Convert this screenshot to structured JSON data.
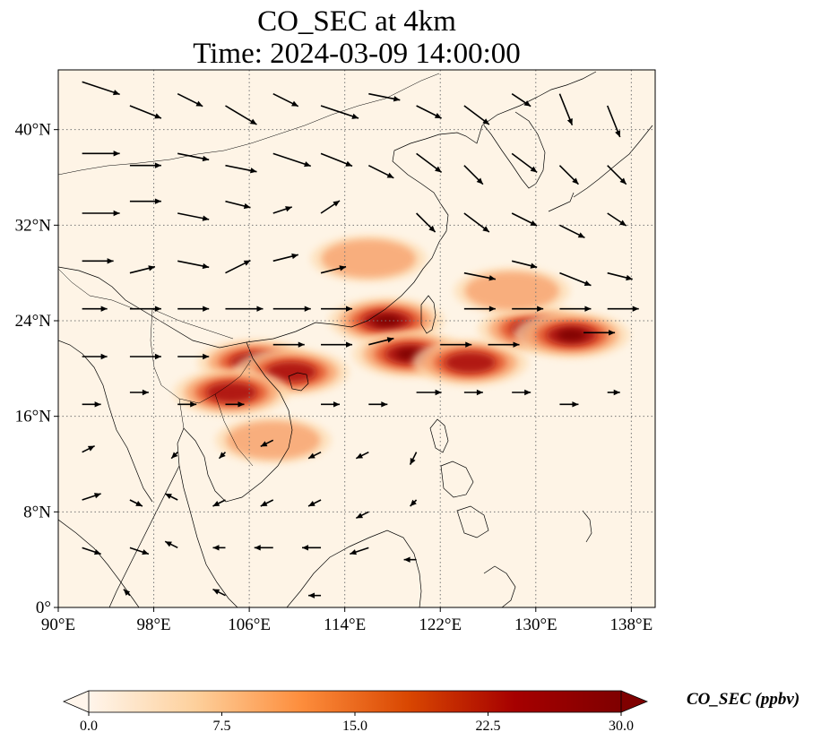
{
  "title": {
    "line1": "CO_SEC at 4km",
    "line2": "Time: 2024-03-09 14:00:00"
  },
  "map": {
    "extent": {
      "lon_min": 90,
      "lon_max": 140,
      "lat_min": 0,
      "lat_max": 45
    },
    "lon_ticks": [
      {
        "value": 90,
        "label": "90°E"
      },
      {
        "value": 98,
        "label": "98°E"
      },
      {
        "value": 106,
        "label": "106°E"
      },
      {
        "value": 114,
        "label": "114°E"
      },
      {
        "value": 122,
        "label": "122°E"
      },
      {
        "value": 130,
        "label": "130°E"
      },
      {
        "value": 138,
        "label": "138°E"
      }
    ],
    "lat_ticks": [
      {
        "value": 0,
        "label": "0°"
      },
      {
        "value": 8,
        "label": "8°N"
      },
      {
        "value": 16,
        "label": "16°N"
      },
      {
        "value": 24,
        "label": "24°N"
      },
      {
        "value": 32,
        "label": "32°N"
      },
      {
        "value": 40,
        "label": "40°N"
      }
    ],
    "gridlines": "dotted",
    "background_color": "#fef4e6",
    "plume_colors": [
      "#fddcb0",
      "#f8a572",
      "#e3572e",
      "#a80f0f",
      "#7a0000"
    ],
    "plumes": [
      {
        "lon": 106.5,
        "lat": 20.5,
        "level": 4
      },
      {
        "lon": 109.5,
        "lat": 19.7,
        "level": 3
      },
      {
        "lon": 104.5,
        "lat": 18.0,
        "level": 3
      },
      {
        "lon": 117.5,
        "lat": 24.0,
        "level": 4
      },
      {
        "lon": 119.5,
        "lat": 21.2,
        "level": 4
      },
      {
        "lon": 124.5,
        "lat": 20.5,
        "level": 3
      },
      {
        "lon": 130.0,
        "lat": 23.3,
        "level": 4
      },
      {
        "lon": 133.0,
        "lat": 22.8,
        "level": 4
      },
      {
        "lon": 116.0,
        "lat": 29.2,
        "level": 1
      },
      {
        "lon": 128.0,
        "lat": 26.5,
        "level": 1
      },
      {
        "lon": 108.0,
        "lat": 14.0,
        "level": 1
      }
    ],
    "wind_vectors": [
      {
        "lon": 92,
        "lat": 44,
        "u": 6,
        "v": -2
      },
      {
        "lon": 96,
        "lat": 42,
        "u": 5,
        "v": -2
      },
      {
        "lon": 100,
        "lat": 43,
        "u": 4,
        "v": -2
      },
      {
        "lon": 104,
        "lat": 42,
        "u": 5,
        "v": -3
      },
      {
        "lon": 108,
        "lat": 43,
        "u": 4,
        "v": -2
      },
      {
        "lon": 112,
        "lat": 42,
        "u": 6,
        "v": -2
      },
      {
        "lon": 116,
        "lat": 43,
        "u": 5,
        "v": -1
      },
      {
        "lon": 120,
        "lat": 42,
        "u": 4,
        "v": -2
      },
      {
        "lon": 124,
        "lat": 42,
        "u": 4,
        "v": -3
      },
      {
        "lon": 128,
        "lat": 43,
        "u": 3,
        "v": -2
      },
      {
        "lon": 132,
        "lat": 43,
        "u": 2,
        "v": -5
      },
      {
        "lon": 136,
        "lat": 42,
        "u": 2,
        "v": -5
      },
      {
        "lon": 92,
        "lat": 38,
        "u": 6,
        "v": 0
      },
      {
        "lon": 96,
        "lat": 37,
        "u": 5,
        "v": 0
      },
      {
        "lon": 100,
        "lat": 38,
        "u": 5,
        "v": -1
      },
      {
        "lon": 104,
        "lat": 37,
        "u": 5,
        "v": -1
      },
      {
        "lon": 108,
        "lat": 38,
        "u": 6,
        "v": -2
      },
      {
        "lon": 112,
        "lat": 38,
        "u": 5,
        "v": -2
      },
      {
        "lon": 116,
        "lat": 37,
        "u": 4,
        "v": -2
      },
      {
        "lon": 120,
        "lat": 38,
        "u": 4,
        "v": -3
      },
      {
        "lon": 124,
        "lat": 37,
        "u": 3,
        "v": -3
      },
      {
        "lon": 128,
        "lat": 38,
        "u": 4,
        "v": -3
      },
      {
        "lon": 132,
        "lat": 37,
        "u": 3,
        "v": -3
      },
      {
        "lon": 136,
        "lat": 37,
        "u": 3,
        "v": -3
      },
      {
        "lon": 92,
        "lat": 33,
        "u": 6,
        "v": 0
      },
      {
        "lon": 96,
        "lat": 34,
        "u": 5,
        "v": 0
      },
      {
        "lon": 100,
        "lat": 33,
        "u": 5,
        "v": -1
      },
      {
        "lon": 104,
        "lat": 34,
        "u": 4,
        "v": -1
      },
      {
        "lon": 108,
        "lat": 33,
        "u": 3,
        "v": 1
      },
      {
        "lon": 112,
        "lat": 33,
        "u": 3,
        "v": 2
      },
      {
        "lon": 120,
        "lat": 33,
        "u": 3,
        "v": -3
      },
      {
        "lon": 124,
        "lat": 33,
        "u": 4,
        "v": -3
      },
      {
        "lon": 128,
        "lat": 33,
        "u": 4,
        "v": -2
      },
      {
        "lon": 132,
        "lat": 32,
        "u": 4,
        "v": -2
      },
      {
        "lon": 136,
        "lat": 33,
        "u": 3,
        "v": -2
      },
      {
        "lon": 92,
        "lat": 29,
        "u": 5,
        "v": 0
      },
      {
        "lon": 96,
        "lat": 28,
        "u": 4,
        "v": 1
      },
      {
        "lon": 100,
        "lat": 29,
        "u": 5,
        "v": -1
      },
      {
        "lon": 104,
        "lat": 28,
        "u": 4,
        "v": 2
      },
      {
        "lon": 108,
        "lat": 29,
        "u": 4,
        "v": 1
      },
      {
        "lon": 112,
        "lat": 28,
        "u": 4,
        "v": 1
      },
      {
        "lon": 124,
        "lat": 28,
        "u": 5,
        "v": -1
      },
      {
        "lon": 128,
        "lat": 29,
        "u": 4,
        "v": -1
      },
      {
        "lon": 132,
        "lat": 28,
        "u": 5,
        "v": -2
      },
      {
        "lon": 136,
        "lat": 28,
        "u": 4,
        "v": -1
      },
      {
        "lon": 92,
        "lat": 25,
        "u": 4,
        "v": 0
      },
      {
        "lon": 96,
        "lat": 25,
        "u": 5,
        "v": 0
      },
      {
        "lon": 100,
        "lat": 25,
        "u": 5,
        "v": 0
      },
      {
        "lon": 104,
        "lat": 25,
        "u": 6,
        "v": 0
      },
      {
        "lon": 108,
        "lat": 25,
        "u": 6,
        "v": 0
      },
      {
        "lon": 112,
        "lat": 25,
        "u": 5,
        "v": 0
      },
      {
        "lon": 124,
        "lat": 25,
        "u": 5,
        "v": 0
      },
      {
        "lon": 128,
        "lat": 25,
        "u": 5,
        "v": 0
      },
      {
        "lon": 132,
        "lat": 25,
        "u": 5,
        "v": 0
      },
      {
        "lon": 136,
        "lat": 25,
        "u": 5,
        "v": 0
      },
      {
        "lon": 92,
        "lat": 21,
        "u": 4,
        "v": 0
      },
      {
        "lon": 96,
        "lat": 21,
        "u": 5,
        "v": 0
      },
      {
        "lon": 100,
        "lat": 21,
        "u": 5,
        "v": 0
      },
      {
        "lon": 108,
        "lat": 22,
        "u": 5,
        "v": 0
      },
      {
        "lon": 112,
        "lat": 22,
        "u": 5,
        "v": 0
      },
      {
        "lon": 116,
        "lat": 22,
        "u": 4,
        "v": 1
      },
      {
        "lon": 122,
        "lat": 22,
        "u": 5,
        "v": 0
      },
      {
        "lon": 126,
        "lat": 22,
        "u": 5,
        "v": 0
      },
      {
        "lon": 134,
        "lat": 23,
        "u": 5,
        "v": 0
      },
      {
        "lon": 92,
        "lat": 17,
        "u": 3,
        "v": 0
      },
      {
        "lon": 96,
        "lat": 18,
        "u": 3,
        "v": 0
      },
      {
        "lon": 100,
        "lat": 17,
        "u": 3,
        "v": 0
      },
      {
        "lon": 104,
        "lat": 17,
        "u": 3,
        "v": 0
      },
      {
        "lon": 112,
        "lat": 17,
        "u": 3,
        "v": 0
      },
      {
        "lon": 116,
        "lat": 17,
        "u": 3,
        "v": 0
      },
      {
        "lon": 120,
        "lat": 18,
        "u": 4,
        "v": 0
      },
      {
        "lon": 124,
        "lat": 18,
        "u": 3,
        "v": 0
      },
      {
        "lon": 128,
        "lat": 18,
        "u": 3,
        "v": 0
      },
      {
        "lon": 132,
        "lat": 17,
        "u": 3,
        "v": 0
      },
      {
        "lon": 136,
        "lat": 18,
        "u": 2,
        "v": 0
      },
      {
        "lon": 92,
        "lat": 13,
        "u": 2,
        "v": 1
      },
      {
        "lon": 100,
        "lat": 13,
        "u": -1,
        "v": -1
      },
      {
        "lon": 104,
        "lat": 13,
        "u": -1,
        "v": -1
      },
      {
        "lon": 108,
        "lat": 14,
        "u": -2,
        "v": -1
      },
      {
        "lon": 112,
        "lat": 13,
        "u": -2,
        "v": -1
      },
      {
        "lon": 116,
        "lat": 13,
        "u": -2,
        "v": -1
      },
      {
        "lon": 120,
        "lat": 13,
        "u": -1,
        "v": -2
      },
      {
        "lon": 92,
        "lat": 9,
        "u": 3,
        "v": 1
      },
      {
        "lon": 96,
        "lat": 9,
        "u": 2,
        "v": -1
      },
      {
        "lon": 100,
        "lat": 9,
        "u": -2,
        "v": 1
      },
      {
        "lon": 104,
        "lat": 9,
        "u": -2,
        "v": -1
      },
      {
        "lon": 108,
        "lat": 9,
        "u": -2,
        "v": -1
      },
      {
        "lon": 112,
        "lat": 9,
        "u": -2,
        "v": -1
      },
      {
        "lon": 116,
        "lat": 8,
        "u": -2,
        "v": -1
      },
      {
        "lon": 120,
        "lat": 9,
        "u": -1,
        "v": -1
      },
      {
        "lon": 92,
        "lat": 5,
        "u": 3,
        "v": -1
      },
      {
        "lon": 96,
        "lat": 5,
        "u": 3,
        "v": -1
      },
      {
        "lon": 100,
        "lat": 5,
        "u": -2,
        "v": 1
      },
      {
        "lon": 104,
        "lat": 5,
        "u": -2,
        "v": 0
      },
      {
        "lon": 108,
        "lat": 5,
        "u": -3,
        "v": 0
      },
      {
        "lon": 112,
        "lat": 5,
        "u": -3,
        "v": 0
      },
      {
        "lon": 116,
        "lat": 5,
        "u": -3,
        "v": -1
      },
      {
        "lon": 120,
        "lat": 4,
        "u": -2,
        "v": 0
      },
      {
        "lon": 96,
        "lat": 1,
        "u": -1,
        "v": 1
      },
      {
        "lon": 104,
        "lat": 1,
        "u": -2,
        "v": 1
      },
      {
        "lon": 112,
        "lat": 1,
        "u": -2,
        "v": 0
      }
    ]
  },
  "colorbar": {
    "label": "CO_SEC (ppbv)",
    "ticks": [
      "0.0",
      "7.5",
      "15.0",
      "22.5",
      "30.0"
    ],
    "range": [
      0,
      30
    ],
    "extend": "both",
    "colors": [
      "#fff5eb",
      "#fdd09c",
      "#fd8d3c",
      "#d94701",
      "#a60000",
      "#7f0000"
    ]
  }
}
